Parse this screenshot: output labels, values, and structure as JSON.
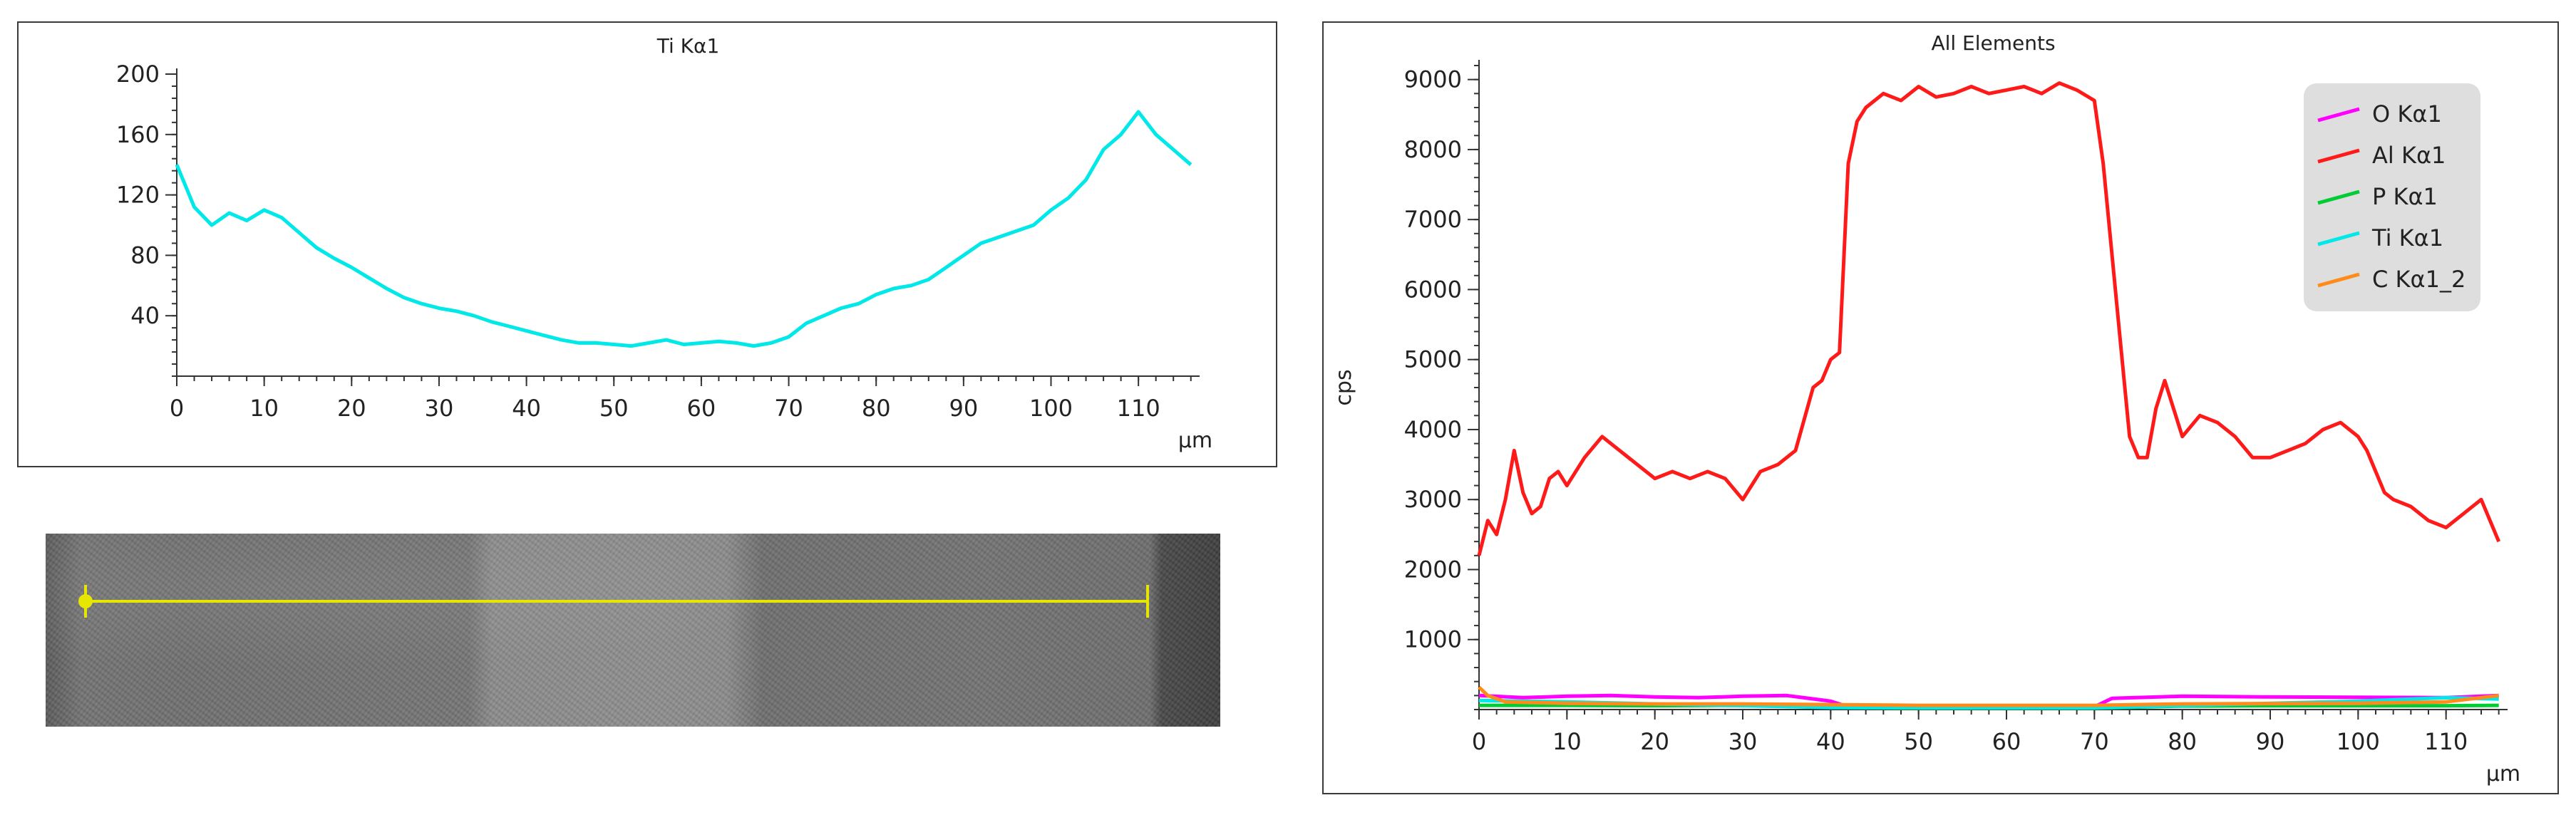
{
  "chart_data": [
    {
      "type": "line",
      "title": "Ti Kα1",
      "xlabel": "µm",
      "ylabel": "",
      "xlim": [
        0,
        117
      ],
      "ylim": [
        0,
        200
      ],
      "xticks": [
        "0",
        "10",
        "20",
        "30",
        "40",
        "50",
        "60",
        "70",
        "80",
        "90",
        "100",
        "110"
      ],
      "yticks": [
        "40",
        "80",
        "120",
        "160",
        "200"
      ],
      "series": [
        {
          "name": "Ti Kα1",
          "color": "#00e8e8",
          "x": [
            0,
            2,
            4,
            6,
            8,
            10,
            12,
            14,
            16,
            18,
            20,
            22,
            24,
            26,
            28,
            30,
            32,
            34,
            36,
            38,
            40,
            42,
            44,
            46,
            48,
            50,
            52,
            54,
            56,
            58,
            60,
            62,
            64,
            66,
            68,
            70,
            72,
            74,
            76,
            78,
            80,
            82,
            84,
            86,
            88,
            90,
            92,
            94,
            96,
            98,
            100,
            102,
            104,
            106,
            108,
            110,
            112,
            114,
            116
          ],
          "y": [
            140,
            112,
            100,
            108,
            103,
            110,
            105,
            95,
            85,
            78,
            72,
            65,
            58,
            52,
            48,
            45,
            43,
            40,
            36,
            33,
            30,
            27,
            24,
            22,
            22,
            21,
            20,
            22,
            24,
            21,
            22,
            23,
            22,
            20,
            22,
            26,
            35,
            40,
            45,
            48,
            54,
            58,
            60,
            64,
            72,
            80,
            88,
            92,
            96,
            100,
            110,
            118,
            130,
            150,
            160,
            175,
            160,
            150,
            140
          ]
        }
      ]
    },
    {
      "type": "line",
      "title": "All Elements",
      "xlabel": "µm",
      "ylabel": "cps",
      "xlim": [
        0,
        117
      ],
      "ylim": [
        0,
        9200
      ],
      "xticks": [
        "0",
        "10",
        "20",
        "30",
        "40",
        "50",
        "60",
        "70",
        "80",
        "90",
        "100",
        "110"
      ],
      "yticks": [
        "1000",
        "2000",
        "3000",
        "4000",
        "5000",
        "6000",
        "7000",
        "8000",
        "9000"
      ],
      "legend_position": "top-right",
      "series": [
        {
          "name": "O Kα1",
          "color": "#ff00ff",
          "x": [
            0,
            5,
            10,
            15,
            20,
            25,
            30,
            35,
            40,
            42,
            50,
            60,
            70,
            72,
            80,
            90,
            100,
            110,
            116
          ],
          "y": [
            200,
            170,
            190,
            200,
            180,
            170,
            190,
            200,
            120,
            40,
            30,
            30,
            40,
            160,
            190,
            180,
            175,
            170,
            200
          ]
        },
        {
          "name": "Al Kα1",
          "color": "#ff1a1a",
          "x": [
            0,
            1,
            2,
            3,
            4,
            5,
            6,
            7,
            8,
            9,
            10,
            12,
            14,
            16,
            18,
            20,
            22,
            24,
            26,
            28,
            30,
            32,
            34,
            36,
            38,
            39,
            40,
            41,
            42,
            43,
            44,
            46,
            48,
            50,
            52,
            54,
            56,
            58,
            60,
            62,
            64,
            66,
            68,
            70,
            71,
            72,
            73,
            74,
            75,
            76,
            77,
            78,
            80,
            82,
            84,
            86,
            88,
            90,
            92,
            94,
            96,
            98,
            100,
            101,
            102,
            103,
            104,
            106,
            108,
            110,
            112,
            114,
            116
          ],
          "y": [
            2200,
            2700,
            2500,
            3000,
            3700,
            3100,
            2800,
            2900,
            3300,
            3400,
            3200,
            3600,
            3900,
            3700,
            3500,
            3300,
            3400,
            3300,
            3400,
            3300,
            3000,
            3400,
            3500,
            3700,
            4600,
            4700,
            5000,
            5100,
            7800,
            8400,
            8600,
            8800,
            8700,
            8900,
            8750,
            8800,
            8900,
            8800,
            8850,
            8900,
            8800,
            8950,
            8850,
            8700,
            7800,
            6500,
            5200,
            3900,
            3600,
            3600,
            4300,
            4700,
            3900,
            4200,
            4100,
            3900,
            3600,
            3600,
            3700,
            3800,
            4000,
            4100,
            3900,
            3700,
            3400,
            3100,
            3000,
            2900,
            2700,
            2600,
            2800,
            3000,
            2400
          ]
        },
        {
          "name": "P Kα1",
          "color": "#00cc33",
          "x": [
            0,
            10,
            20,
            30,
            40,
            50,
            60,
            70,
            80,
            90,
            100,
            110,
            116
          ],
          "y": [
            60,
            60,
            55,
            60,
            30,
            20,
            20,
            20,
            50,
            55,
            55,
            55,
            60
          ]
        },
        {
          "name": "Ti Kα1",
          "color": "#00e8e8",
          "x": [
            0,
            10,
            20,
            30,
            40,
            50,
            60,
            70,
            80,
            90,
            100,
            110,
            116
          ],
          "y": [
            130,
            110,
            80,
            55,
            30,
            25,
            25,
            25,
            55,
            90,
            120,
            170,
            150
          ]
        },
        {
          "name": "C Kα1_2",
          "color": "#ff8c1a",
          "x": [
            0,
            1,
            3,
            10,
            20,
            30,
            40,
            50,
            60,
            70,
            80,
            90,
            100,
            110,
            116
          ],
          "y": [
            320,
            200,
            110,
            90,
            80,
            80,
            70,
            60,
            60,
            60,
            80,
            85,
            90,
            110,
            200
          ]
        }
      ]
    }
  ]
}
